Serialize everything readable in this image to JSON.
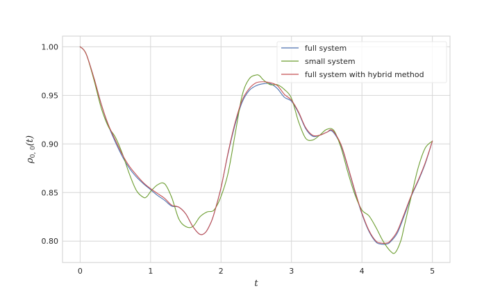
{
  "chart_data": {
    "type": "line",
    "xlabel": "t",
    "ylabel": "ρ0,0(t)",
    "ylabel_main": "ρ",
    "ylabel_sub": "0, 0",
    "ylabel_tail": "(t)",
    "xlim": [
      -0.25,
      5.25
    ],
    "ylim": [
      0.778,
      1.011
    ],
    "xticks": [
      0,
      1,
      2,
      3,
      4,
      5
    ],
    "xtick_labels": [
      "0",
      "1",
      "2",
      "3",
      "4",
      "5"
    ],
    "yticks": [
      0.8,
      0.85,
      0.9,
      0.95,
      1.0
    ],
    "ytick_labels": [
      "0.80",
      "0.85",
      "0.90",
      "0.95",
      "1.00"
    ],
    "grid": true,
    "legend_position": "top-right",
    "series": [
      {
        "name": "full system",
        "color": "#4c72b0",
        "x": [
          0,
          0.05,
          0.1,
          0.2,
          0.3,
          0.4,
          0.5,
          0.6,
          0.7,
          0.8,
          0.9,
          1.0,
          1.1,
          1.2,
          1.3,
          1.4,
          1.5,
          1.6,
          1.7,
          1.78,
          1.85,
          1.9,
          2.0,
          2.1,
          2.2,
          2.3,
          2.4,
          2.5,
          2.6,
          2.7,
          2.8,
          2.9,
          3.0,
          3.1,
          3.2,
          3.3,
          3.4,
          3.5,
          3.58,
          3.7,
          3.8,
          3.9,
          4.0,
          4.1,
          4.2,
          4.27,
          4.35,
          4.4,
          4.5,
          4.6,
          4.7,
          4.8,
          4.9,
          5.0
        ],
        "y": [
          1.0,
          0.997,
          0.99,
          0.967,
          0.941,
          0.919,
          0.902,
          0.887,
          0.875,
          0.866,
          0.859,
          0.853,
          0.847,
          0.842,
          0.836,
          0.835,
          0.828,
          0.815,
          0.807,
          0.809,
          0.818,
          0.828,
          0.855,
          0.89,
          0.92,
          0.943,
          0.955,
          0.96,
          0.962,
          0.962,
          0.957,
          0.948,
          0.944,
          0.932,
          0.916,
          0.908,
          0.909,
          0.912,
          0.913,
          0.899,
          0.876,
          0.851,
          0.828,
          0.81,
          0.799,
          0.797,
          0.797,
          0.799,
          0.808,
          0.826,
          0.846,
          0.862,
          0.88,
          0.903
        ]
      },
      {
        "name": "small system",
        "color": "#6a9c2e",
        "x": [
          0,
          0.05,
          0.1,
          0.2,
          0.3,
          0.4,
          0.5,
          0.6,
          0.7,
          0.8,
          0.9,
          0.95,
          1.0,
          1.1,
          1.2,
          1.3,
          1.4,
          1.5,
          1.6,
          1.7,
          1.8,
          1.9,
          2.0,
          2.1,
          2.2,
          2.3,
          2.4,
          2.5,
          2.55,
          2.6,
          2.7,
          2.8,
          2.9,
          3.0,
          3.1,
          3.2,
          3.3,
          3.4,
          3.5,
          3.6,
          3.7,
          3.8,
          3.9,
          4.0,
          4.1,
          4.2,
          4.3,
          4.4,
          4.47,
          4.55,
          4.6,
          4.7,
          4.8,
          4.9,
          5.0
        ],
        "y": [
          1.0,
          0.997,
          0.99,
          0.965,
          0.937,
          0.918,
          0.907,
          0.89,
          0.869,
          0.852,
          0.845,
          0.846,
          0.851,
          0.858,
          0.859,
          0.845,
          0.823,
          0.815,
          0.815,
          0.825,
          0.83,
          0.832,
          0.846,
          0.87,
          0.91,
          0.95,
          0.967,
          0.971,
          0.97,
          0.966,
          0.961,
          0.961,
          0.956,
          0.947,
          0.923,
          0.906,
          0.904,
          0.909,
          0.915,
          0.914,
          0.897,
          0.871,
          0.848,
          0.832,
          0.826,
          0.814,
          0.8,
          0.79,
          0.788,
          0.8,
          0.815,
          0.846,
          0.876,
          0.896,
          0.903
        ]
      },
      {
        "name": "full system with hybrid method",
        "color": "#c44e52",
        "x": [
          0,
          0.05,
          0.1,
          0.2,
          0.3,
          0.4,
          0.5,
          0.6,
          0.7,
          0.8,
          0.9,
          1.0,
          1.1,
          1.2,
          1.3,
          1.4,
          1.5,
          1.6,
          1.7,
          1.78,
          1.85,
          1.9,
          2.0,
          2.1,
          2.2,
          2.3,
          2.4,
          2.5,
          2.6,
          2.7,
          2.8,
          2.9,
          3.0,
          3.1,
          3.2,
          3.3,
          3.4,
          3.5,
          3.58,
          3.7,
          3.8,
          3.9,
          4.0,
          4.1,
          4.2,
          4.27,
          4.35,
          4.4,
          4.5,
          4.6,
          4.7,
          4.8,
          4.9,
          5.0
        ],
        "y": [
          1.0,
          0.997,
          0.99,
          0.967,
          0.941,
          0.92,
          0.904,
          0.889,
          0.877,
          0.868,
          0.86,
          0.854,
          0.849,
          0.844,
          0.837,
          0.835,
          0.828,
          0.815,
          0.807,
          0.809,
          0.818,
          0.828,
          0.855,
          0.891,
          0.922,
          0.945,
          0.957,
          0.963,
          0.964,
          0.963,
          0.96,
          0.951,
          0.945,
          0.933,
          0.917,
          0.909,
          0.909,
          0.912,
          0.914,
          0.9,
          0.877,
          0.852,
          0.829,
          0.811,
          0.8,
          0.798,
          0.798,
          0.8,
          0.81,
          0.828,
          0.847,
          0.863,
          0.881,
          0.903
        ]
      }
    ]
  }
}
